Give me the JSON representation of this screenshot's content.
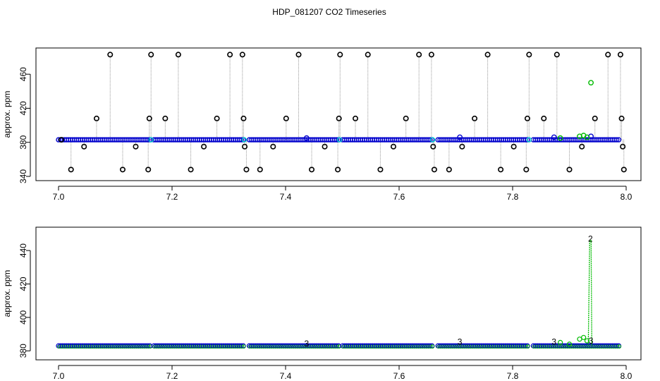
{
  "chart_data": [
    {
      "type": "scatter",
      "title": "HDP_081207  CO2 Timeseries",
      "xlabel": "",
      "ylabel": "approx. ppm",
      "xlim": [
        7.0,
        8.0
      ],
      "ylim": [
        340,
        485
      ],
      "xticks": [
        "7.0",
        "7.2",
        "7.4",
        "7.6",
        "7.8",
        "8.0"
      ],
      "yticks": [
        "340",
        "380",
        "420",
        "460"
      ],
      "baseline_level": 383,
      "outlier_levels": [
        348,
        375,
        408,
        483
      ],
      "colors": {
        "raw": "#000000",
        "trace": "#999999",
        "series1": "#0000cc",
        "series2": "#00bb00",
        "flag": "#00cccc"
      },
      "gaps": [
        [
          7.163,
          7.167
        ],
        [
          7.327,
          7.333
        ],
        [
          7.495,
          7.5
        ],
        [
          7.659,
          7.665
        ],
        [
          7.829,
          7.834
        ]
      ],
      "outliers": [
        {
          "x": 7.005,
          "y": 383
        },
        {
          "x": 7.022,
          "y": 348
        },
        {
          "x": 7.045,
          "y": 375
        },
        {
          "x": 7.067,
          "y": 408
        },
        {
          "x": 7.091,
          "y": 483
        },
        {
          "x": 7.113,
          "y": 348
        },
        {
          "x": 7.136,
          "y": 375
        },
        {
          "x": 7.158,
          "y": 348
        },
        {
          "x": 7.16,
          "y": 408
        },
        {
          "x": 7.163,
          "y": 483
        },
        {
          "x": 7.188,
          "y": 408
        },
        {
          "x": 7.211,
          "y": 483
        },
        {
          "x": 7.233,
          "y": 348
        },
        {
          "x": 7.256,
          "y": 375
        },
        {
          "x": 7.279,
          "y": 408
        },
        {
          "x": 7.302,
          "y": 483
        },
        {
          "x": 7.324,
          "y": 483
        },
        {
          "x": 7.326,
          "y": 408
        },
        {
          "x": 7.328,
          "y": 375
        },
        {
          "x": 7.331,
          "y": 348
        },
        {
          "x": 7.355,
          "y": 348
        },
        {
          "x": 7.378,
          "y": 375
        },
        {
          "x": 7.401,
          "y": 408
        },
        {
          "x": 7.423,
          "y": 483
        },
        {
          "x": 7.446,
          "y": 348
        },
        {
          "x": 7.469,
          "y": 375
        },
        {
          "x": 7.492,
          "y": 348
        },
        {
          "x": 7.494,
          "y": 408
        },
        {
          "x": 7.496,
          "y": 483
        },
        {
          "x": 7.523,
          "y": 408
        },
        {
          "x": 7.545,
          "y": 483
        },
        {
          "x": 7.567,
          "y": 348
        },
        {
          "x": 7.59,
          "y": 375
        },
        {
          "x": 7.612,
          "y": 408
        },
        {
          "x": 7.635,
          "y": 483
        },
        {
          "x": 7.657,
          "y": 483
        },
        {
          "x": 7.66,
          "y": 375
        },
        {
          "x": 7.662,
          "y": 348
        },
        {
          "x": 7.688,
          "y": 348
        },
        {
          "x": 7.711,
          "y": 375
        },
        {
          "x": 7.733,
          "y": 408
        },
        {
          "x": 7.756,
          "y": 483
        },
        {
          "x": 7.779,
          "y": 348
        },
        {
          "x": 7.802,
          "y": 375
        },
        {
          "x": 7.824,
          "y": 348
        },
        {
          "x": 7.826,
          "y": 408
        },
        {
          "x": 7.829,
          "y": 483
        },
        {
          "x": 7.855,
          "y": 408
        },
        {
          "x": 7.878,
          "y": 483
        },
        {
          "x": 7.9,
          "y": 348
        },
        {
          "x": 7.922,
          "y": 375
        },
        {
          "x": 7.945,
          "y": 408
        },
        {
          "x": 7.968,
          "y": 483
        },
        {
          "x": 7.99,
          "y": 483
        },
        {
          "x": 7.992,
          "y": 408
        },
        {
          "x": 7.994,
          "y": 375
        },
        {
          "x": 7.996,
          "y": 348
        }
      ],
      "highlights": [
        {
          "x": 7.437,
          "y": 385,
          "series": "series1"
        },
        {
          "x": 7.707,
          "y": 386,
          "series": "series1"
        },
        {
          "x": 7.873,
          "y": 386,
          "series": "series1"
        },
        {
          "x": 7.938,
          "y": 387,
          "series": "series1"
        },
        {
          "x": 7.884,
          "y": 385,
          "series": "series2"
        },
        {
          "x": 7.918,
          "y": 387,
          "series": "series2"
        },
        {
          "x": 7.925,
          "y": 388,
          "series": "series2"
        },
        {
          "x": 7.931,
          "y": 386,
          "series": "series2"
        },
        {
          "x": 7.938,
          "y": 450,
          "series": "series2"
        }
      ]
    },
    {
      "type": "line",
      "title": "",
      "xlabel": "",
      "ylabel": "approx. ppm",
      "xlim": [
        7.0,
        8.0
      ],
      "ylim": [
        378,
        451
      ],
      "xticks": [
        "7.0",
        "7.2",
        "7.4",
        "7.6",
        "7.8",
        "8.0"
      ],
      "yticks": [
        "380",
        "400",
        "420",
        "440"
      ],
      "baseline_level": 383,
      "colors": {
        "series1": "#0000cc",
        "series2": "#00bb00"
      },
      "spike": {
        "x": 7.937,
        "y": 446
      },
      "point_labels": [
        {
          "x": 7.437,
          "y": 384.5,
          "text": "3",
          "series": "series1"
        },
        {
          "x": 7.707,
          "y": 385.5,
          "text": "3",
          "series": "series1"
        },
        {
          "x": 7.873,
          "y": 385.5,
          "text": "3",
          "series": "series1"
        },
        {
          "x": 7.938,
          "y": 386,
          "text": "3",
          "series": "series1"
        },
        {
          "x": 7.937,
          "y": 447,
          "text": "2",
          "series": "series2"
        }
      ],
      "green_bumps": [
        {
          "x": 7.884,
          "y": 385
        },
        {
          "x": 7.9,
          "y": 384
        },
        {
          "x": 7.918,
          "y": 387
        },
        {
          "x": 7.925,
          "y": 388
        },
        {
          "x": 7.931,
          "y": 386
        }
      ]
    }
  ]
}
